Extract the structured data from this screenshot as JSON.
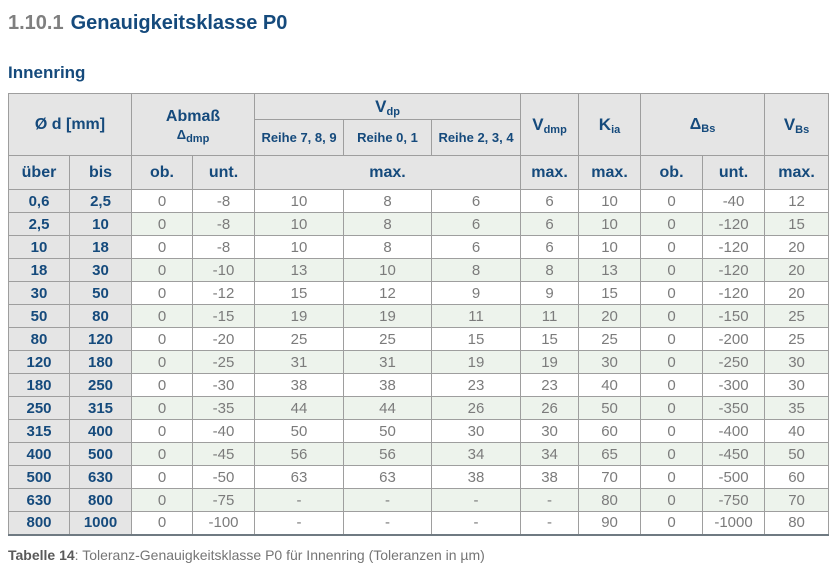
{
  "page": {
    "heading_number": "1.10.1",
    "heading_title": "Genauigkeitsklasse P0",
    "section_title": "Innenring",
    "caption_label": "Tabelle 14",
    "caption_text": ": Toleranz-Genauigkeitsklasse P0 für Innenring (Toleranzen in µm)"
  },
  "colors": {
    "accent_blue": "#154a7c",
    "header_gray": "#e5e5e5",
    "row_alt_green": "#edf3ec",
    "data_text_gray": "#7b7b7b",
    "grid_line": "#9e9e9e"
  },
  "table": {
    "header": {
      "diameter": "Ø d  [mm]",
      "abmass_line1": "Abmaß",
      "abmass_symbol": "Δ",
      "abmass_sub": "dmp",
      "vdp_symbol": "V",
      "vdp_sub": "dp",
      "vdmp_symbol": "V",
      "vdmp_sub": "dmp",
      "kia_symbol": "K",
      "kia_sub": "ia",
      "dbs_symbol": "Δ",
      "dbs_sub": "Bs",
      "vbs_symbol": "V",
      "vbs_sub": "Bs",
      "series": [
        "Reihe 7, 8, 9",
        "Reihe 0, 1",
        "Reihe 2, 3, 4"
      ],
      "sub": {
        "ueber": "über",
        "bis": "bis",
        "ob": "ob.",
        "unt": "unt.",
        "max": "max."
      }
    },
    "rows": [
      [
        "0,6",
        "2,5",
        "0",
        "-8",
        "10",
        "8",
        "6",
        "6",
        "10",
        "0",
        "-40",
        "12"
      ],
      [
        "2,5",
        "10",
        "0",
        "-8",
        "10",
        "8",
        "6",
        "6",
        "10",
        "0",
        "-120",
        "15"
      ],
      [
        "10",
        "18",
        "0",
        "-8",
        "10",
        "8",
        "6",
        "6",
        "10",
        "0",
        "-120",
        "20"
      ],
      [
        "18",
        "30",
        "0",
        "-10",
        "13",
        "10",
        "8",
        "8",
        "13",
        "0",
        "-120",
        "20"
      ],
      [
        "30",
        "50",
        "0",
        "-12",
        "15",
        "12",
        "9",
        "9",
        "15",
        "0",
        "-120",
        "20"
      ],
      [
        "50",
        "80",
        "0",
        "-15",
        "19",
        "19",
        "11",
        "11",
        "20",
        "0",
        "-150",
        "25"
      ],
      [
        "80",
        "120",
        "0",
        "-20",
        "25",
        "25",
        "15",
        "15",
        "25",
        "0",
        "-200",
        "25"
      ],
      [
        "120",
        "180",
        "0",
        "-25",
        "31",
        "31",
        "19",
        "19",
        "30",
        "0",
        "-250",
        "30"
      ],
      [
        "180",
        "250",
        "0",
        "-30",
        "38",
        "38",
        "23",
        "23",
        "40",
        "0",
        "-300",
        "30"
      ],
      [
        "250",
        "315",
        "0",
        "-35",
        "44",
        "44",
        "26",
        "26",
        "50",
        "0",
        "-350",
        "35"
      ],
      [
        "315",
        "400",
        "0",
        "-40",
        "50",
        "50",
        "30",
        "30",
        "60",
        "0",
        "-400",
        "40"
      ],
      [
        "400",
        "500",
        "0",
        "-45",
        "56",
        "56",
        "34",
        "34",
        "65",
        "0",
        "-450",
        "50"
      ],
      [
        "500",
        "630",
        "0",
        "-50",
        "63",
        "63",
        "38",
        "38",
        "70",
        "0",
        "-500",
        "60"
      ],
      [
        "630",
        "800",
        "0",
        "-75",
        "-",
        "-",
        "-",
        "-",
        "80",
        "0",
        "-750",
        "70"
      ],
      [
        "800",
        "1000",
        "0",
        "-100",
        "-",
        "-",
        "-",
        "-",
        "90",
        "0",
        "-1000",
        "80"
      ]
    ]
  }
}
